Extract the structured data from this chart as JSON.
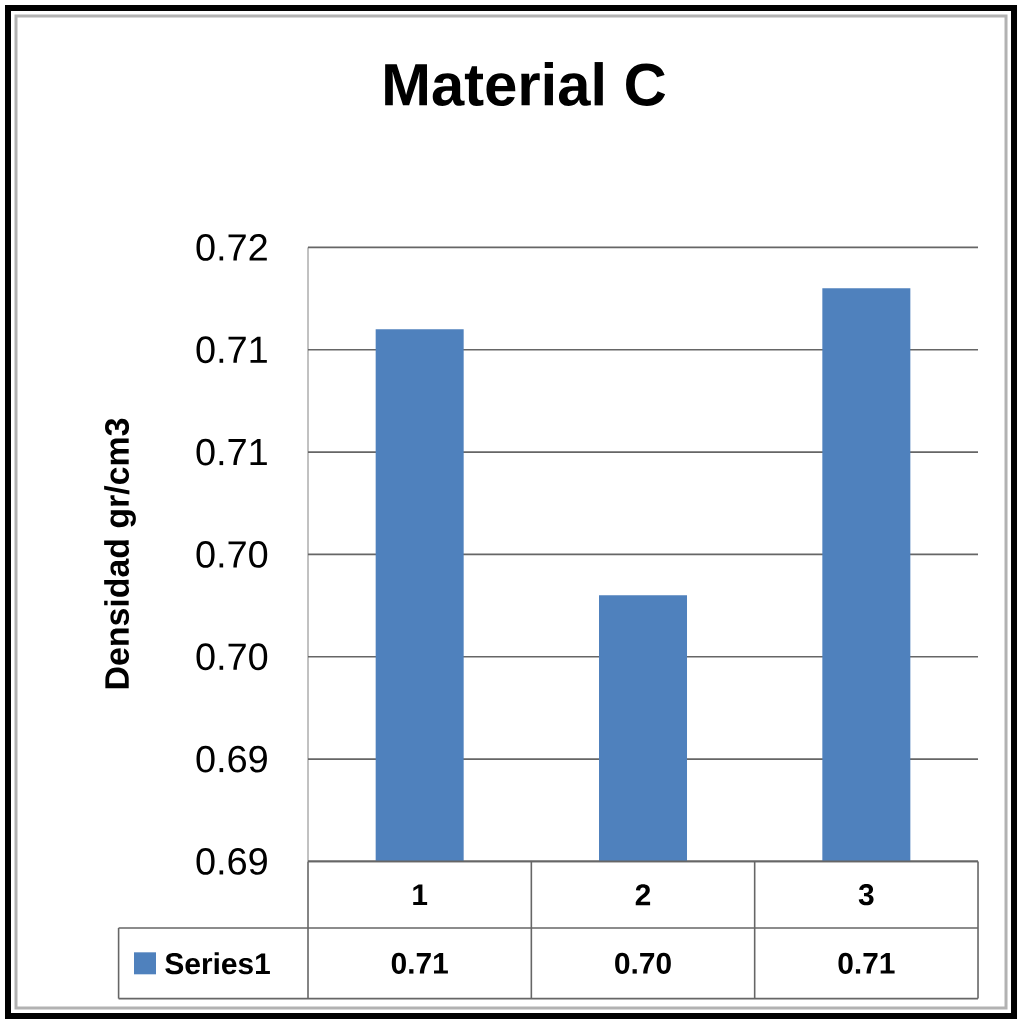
{
  "chart_data": {
    "type": "bar",
    "title": "Material C",
    "ylabel": "Densidad gr/cm3",
    "categories": [
      "1",
      "2",
      "3"
    ],
    "series": [
      {
        "name": "Series1",
        "color": "#4f81bd",
        "values": [
          0.712,
          0.699,
          0.714
        ],
        "value_labels": [
          "0.71",
          "0.70",
          "0.71"
        ]
      }
    ],
    "ylim": [
      0.686,
      0.716
    ],
    "yticks": [
      {
        "value": 0.686,
        "label": "0.69"
      },
      {
        "value": 0.691,
        "label": "0.69"
      },
      {
        "value": 0.696,
        "label": "0.70"
      },
      {
        "value": 0.701,
        "label": "0.70"
      },
      {
        "value": 0.706,
        "label": "0.71"
      },
      {
        "value": 0.711,
        "label": "0.71"
      },
      {
        "value": 0.716,
        "label": "0.72"
      }
    ],
    "grid": "y",
    "legend": "bottom"
  }
}
